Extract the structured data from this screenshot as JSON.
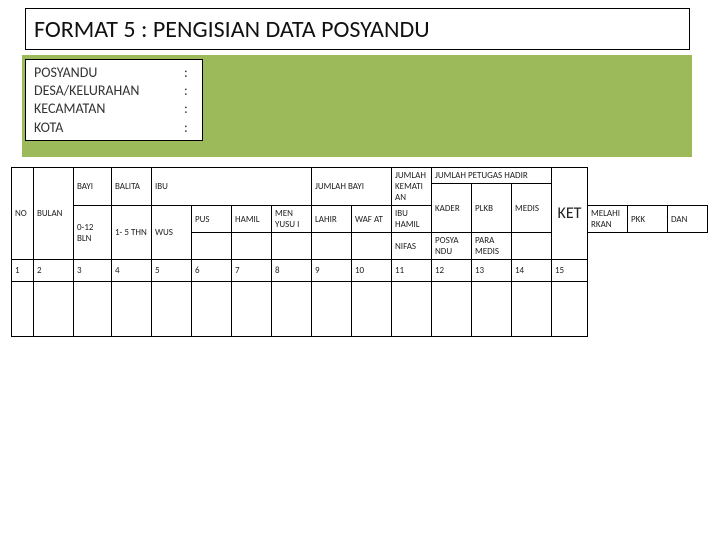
{
  "colors": {
    "band": "#9dba5a",
    "border": "#000000",
    "bg": "#ffffff",
    "text": "#222222"
  },
  "title": "FORMAT 5  : PENGISIAN DATA POSYANDU",
  "meta": {
    "rows": [
      {
        "label": "POSYANDU",
        "value": ""
      },
      {
        "label": "DESA/KELURAHAN",
        "value": ""
      },
      {
        "label": "KECAMATAN",
        "value": ""
      },
      {
        "label": "KOTA",
        "value": ""
      }
    ]
  },
  "table": {
    "header": {
      "no": "NO",
      "bulan": "BULAN",
      "bayi": "BAYI",
      "balita": "BALITA",
      "ibu": "IBU",
      "jumlah_bayi": "JUMLAH  BAYI",
      "jumlah_kematian": "JUMLAH KEMATI AN",
      "jumlah_petugas": "JUMLAH PETUGAS HADIR",
      "ket": "KET",
      "bayi_sub": "0-12 BLN",
      "balita_sub": "1- 5 THN",
      "wus": "WUS",
      "pus": "PUS",
      "hamil": "HAMIL",
      "menyusui": "MEN YUSU I",
      "lahir": "LAHIR",
      "wafat": "WAF AT",
      "ibu_hamil": "IBU HAMIL",
      "melahirkan": "MELAHI RKAN",
      "nifas": "NIFAS",
      "kader": "KADER",
      "plkb": "PLKB",
      "medis": "MEDIS",
      "pkk": "PKK",
      "posyandu": "POSYA NDU",
      "dan": "DAN",
      "paramedis": "PARA MEDIS"
    },
    "column_numbers": [
      "1",
      "2",
      "3",
      "4",
      "5",
      "6",
      "7",
      "8",
      "9",
      "10",
      "11",
      "12",
      "13",
      "14",
      "15"
    ],
    "rows": [
      [
        "",
        "",
        "",
        "",
        "",
        "",
        "",
        "",
        "",
        "",
        "",
        "",
        "",
        "",
        ""
      ]
    ]
  }
}
